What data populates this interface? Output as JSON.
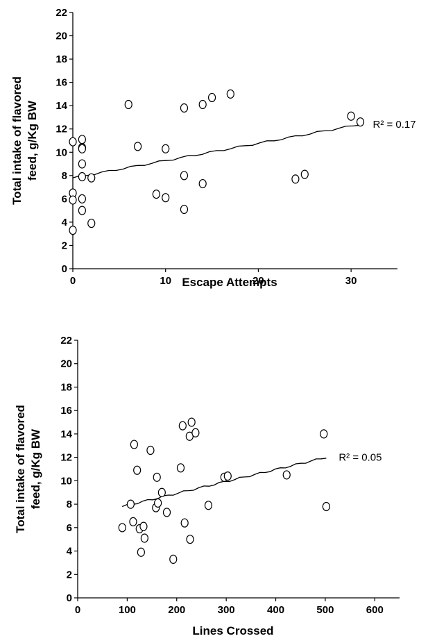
{
  "chart_data": [
    {
      "type": "scatter",
      "title": "",
      "xlabel": "Escape Attempts",
      "ylabel_lines": [
        "Total intake of flavored",
        "feed, g/Kg BW"
      ],
      "xlim": [
        0,
        35
      ],
      "ylim": [
        0,
        22
      ],
      "x_ticks": [
        0,
        10,
        20,
        30
      ],
      "y_ticks": [
        0,
        2,
        4,
        6,
        8,
        10,
        12,
        14,
        16,
        18,
        20,
        22
      ],
      "grid": false,
      "marker": "open-circle",
      "points": [
        {
          "x": 0,
          "y": 10.9
        },
        {
          "x": 0,
          "y": 6.5
        },
        {
          "x": 0,
          "y": 5.9
        },
        {
          "x": 0,
          "y": 3.3
        },
        {
          "x": 1,
          "y": 11.1
        },
        {
          "x": 1,
          "y": 10.4
        },
        {
          "x": 1,
          "y": 10.3
        },
        {
          "x": 1,
          "y": 9.0
        },
        {
          "x": 1,
          "y": 7.9
        },
        {
          "x": 1,
          "y": 6.0
        },
        {
          "x": 1,
          "y": 5.0
        },
        {
          "x": 2,
          "y": 7.8
        },
        {
          "x": 2,
          "y": 3.9
        },
        {
          "x": 6,
          "y": 14.1
        },
        {
          "x": 7,
          "y": 10.5
        },
        {
          "x": 9,
          "y": 6.4
        },
        {
          "x": 10,
          "y": 10.3
        },
        {
          "x": 10,
          "y": 6.1
        },
        {
          "x": 12,
          "y": 13.8
        },
        {
          "x": 12,
          "y": 8.0
        },
        {
          "x": 12,
          "y": 5.1
        },
        {
          "x": 14,
          "y": 14.1
        },
        {
          "x": 14,
          "y": 7.3
        },
        {
          "x": 15,
          "y": 14.7
        },
        {
          "x": 17,
          "y": 15.0
        },
        {
          "x": 24,
          "y": 7.7
        },
        {
          "x": 25,
          "y": 8.1
        },
        {
          "x": 30,
          "y": 13.1
        },
        {
          "x": 31,
          "y": 12.6
        }
      ],
      "trendline": {
        "x": [
          0,
          31
        ],
        "y": [
          7.8,
          12.4
        ]
      },
      "annotation": "R² = 0.17"
    },
    {
      "type": "scatter",
      "title": "",
      "xlabel": "Lines Crossed",
      "ylabel_lines": [
        "Total intake of flavored",
        "feed, g/Kg BW"
      ],
      "xlim": [
        0,
        650
      ],
      "ylim": [
        0,
        22
      ],
      "x_ticks": [
        0,
        100,
        200,
        300,
        400,
        500,
        600
      ],
      "y_ticks": [
        0,
        2,
        4,
        6,
        8,
        10,
        12,
        14,
        16,
        18,
        20,
        22
      ],
      "grid": false,
      "marker": "open-circle",
      "points": [
        {
          "x": 90,
          "y": 6.0
        },
        {
          "x": 107,
          "y": 8.0
        },
        {
          "x": 112,
          "y": 6.5
        },
        {
          "x": 114,
          "y": 13.1
        },
        {
          "x": 120,
          "y": 10.9
        },
        {
          "x": 125,
          "y": 5.9
        },
        {
          "x": 128,
          "y": 3.9
        },
        {
          "x": 133,
          "y": 6.1
        },
        {
          "x": 135,
          "y": 5.1
        },
        {
          "x": 147,
          "y": 12.6
        },
        {
          "x": 158,
          "y": 7.7
        },
        {
          "x": 160,
          "y": 10.3
        },
        {
          "x": 162,
          "y": 8.1
        },
        {
          "x": 170,
          "y": 9.0
        },
        {
          "x": 180,
          "y": 7.3
        },
        {
          "x": 193,
          "y": 3.3
        },
        {
          "x": 208,
          "y": 11.1
        },
        {
          "x": 212,
          "y": 14.7
        },
        {
          "x": 216,
          "y": 6.4
        },
        {
          "x": 226,
          "y": 13.8
        },
        {
          "x": 227,
          "y": 5.0
        },
        {
          "x": 230,
          "y": 15.0
        },
        {
          "x": 238,
          "y": 14.1
        },
        {
          "x": 264,
          "y": 7.9
        },
        {
          "x": 296,
          "y": 10.3
        },
        {
          "x": 303,
          "y": 10.4
        },
        {
          "x": 422,
          "y": 10.5
        },
        {
          "x": 497,
          "y": 14.0
        },
        {
          "x": 502,
          "y": 7.8
        }
      ],
      "trendline": {
        "x": [
          90,
          502
        ],
        "y": [
          7.8,
          12.0
        ]
      },
      "annotation": "R² = 0.05"
    }
  ]
}
